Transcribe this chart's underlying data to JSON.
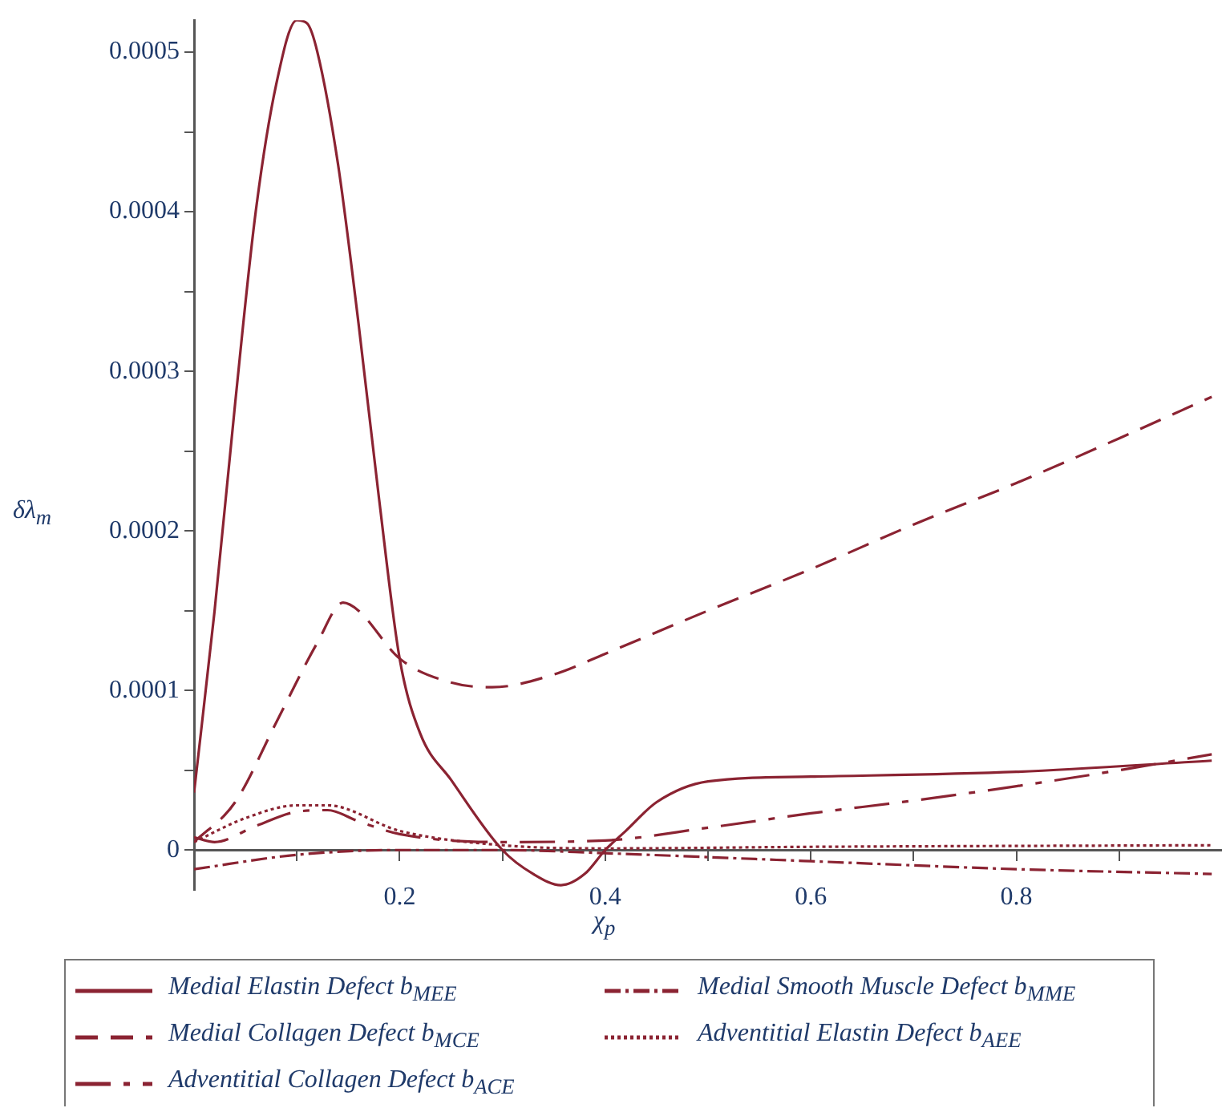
{
  "chart_data": {
    "type": "line",
    "xlabel": "χ$_{p}$",
    "ylabel": "δλ$_{m}$",
    "xlim": [
      0,
      1
    ],
    "ylim": [
      -2.5e-05,
      0.00052
    ],
    "xticks": [
      {
        "value": 0.1,
        "label": null
      },
      0.2,
      {
        "value": 0.3,
        "label": null
      },
      0.4,
      {
        "value": 0.5,
        "label": null
      },
      0.6,
      {
        "value": 0.7,
        "label": null
      },
      0.8,
      {
        "value": 0.9,
        "label": null
      }
    ],
    "yticks": [
      0,
      {
        "value": 5e-05,
        "label": null
      },
      0.0001,
      {
        "value": 0.00015,
        "label": null
      },
      0.0002,
      {
        "value": 0.00025,
        "label": null
      },
      0.0003,
      {
        "value": 0.00035,
        "label": null
      },
      0.0004,
      {
        "value": 0.00045,
        "label": null
      },
      0.0005
    ],
    "grid": false,
    "legend": "bottom",
    "marker": "none",
    "series": [
      {
        "name": "Medial Elastin Defect b$_{MEE}$",
        "color": "#8b2332",
        "line_style": "solid",
        "x": [
          0,
          0.02,
          0.04,
          0.06,
          0.08,
          0.1,
          0.11,
          0.12,
          0.14,
          0.16,
          0.18,
          0.2,
          0.22,
          0.25,
          0.3,
          0.33,
          0.357,
          0.38,
          0.4,
          0.42,
          0.45,
          0.5,
          0.6,
          0.8,
          0.99
        ],
        "values": [
          3.6e-05,
          0.00015,
          0.00028,
          0.0004,
          0.00048,
          0.00052,
          0.000518,
          0.0005,
          0.00043,
          0.00033,
          0.00022,
          0.00012,
          7.3e-05,
          4.4e-05,
          0,
          -1.5e-05,
          -2.2e-05,
          -1.5e-05,
          0,
          1.2e-05,
          3e-05,
          4.3e-05,
          4.6e-05,
          4.9e-05,
          5.6e-05
        ]
      },
      {
        "name": "Medial Collagen Defect b$_{MCE}$",
        "color": "#8b2332",
        "line_style": "dashed",
        "x": [
          0,
          0.04,
          0.08,
          0.12,
          0.145,
          0.16,
          0.2,
          0.25,
          0.29,
          0.35,
          0.4,
          0.5,
          0.6,
          0.7,
          0.8,
          0.9,
          0.99
        ],
        "values": [
          5e-06,
          3e-05,
          8e-05,
          0.00013,
          0.000155,
          0.00015,
          0.00012,
          0.000105,
          0.000102,
          0.00011,
          0.000123,
          0.00015,
          0.000176,
          0.000204,
          0.00023,
          0.000258,
          0.000284
        ]
      },
      {
        "name": "Adventitial Collagen Defect b$_{ACE}$",
        "color": "#8b2332",
        "line_style": "longdash",
        "x": [
          0,
          0.02,
          0.06,
          0.1,
          0.13,
          0.16,
          0.2,
          0.3,
          0.4,
          0.5,
          0.6,
          0.7,
          0.8,
          0.9,
          0.99
        ],
        "values": [
          8e-06,
          5e-06,
          1.5e-05,
          2.4e-05,
          2.5e-05,
          1.8e-05,
          1e-05,
          5e-06,
          6e-06,
          1.4e-05,
          2.3e-05,
          3.1e-05,
          4e-05,
          5e-05,
          6e-05
        ]
      },
      {
        "name": "Medial Smooth Muscle Defect b$_{MME}$",
        "color": "#8b2332",
        "line_style": "dashdot",
        "x": [
          0,
          0.1,
          0.2,
          0.3,
          0.4,
          0.6,
          0.8,
          0.99
        ],
        "values": [
          -1.2e-05,
          -3e-06,
          0,
          0,
          -2e-06,
          -7e-06,
          -1.2e-05,
          -1.5e-05
        ]
      },
      {
        "name": "Adventitial Elastin Defect b$_{AEE}$",
        "color": "#8b2332",
        "line_style": "dotted",
        "x": [
          0,
          0.05,
          0.1,
          0.13,
          0.2,
          0.3,
          0.4,
          0.6,
          0.99
        ],
        "values": [
          5e-06,
          2e-05,
          2.8e-05,
          2.8e-05,
          1.2e-05,
          3e-06,
          1e-06,
          2e-06,
          3e-06
        ]
      }
    ]
  }
}
